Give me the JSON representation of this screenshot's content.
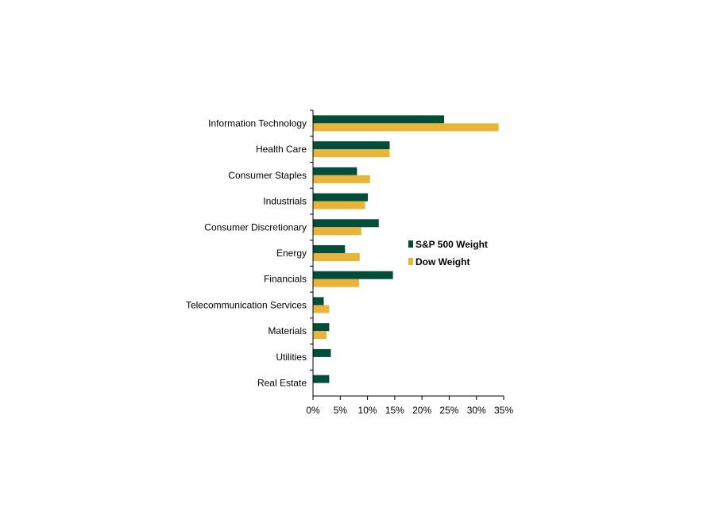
{
  "chart_data": {
    "type": "bar",
    "orientation": "horizontal",
    "categories": [
      "Information Technology",
      "Health Care",
      "Consumer Staples",
      "Industrials",
      "Consumer Discretionary",
      "Energy",
      "Financials",
      "Telecommunication Services",
      "Materials",
      "Utilities",
      "Real Estate"
    ],
    "series": [
      {
        "name": "S&P 500 Weight",
        "color": "#004d3a",
        "values": [
          24.0,
          14.0,
          8.0,
          10.0,
          12.0,
          5.8,
          14.6,
          1.9,
          2.9,
          3.2,
          2.9
        ]
      },
      {
        "name": "Dow Weight",
        "color": "#e8b53a",
        "values": [
          34.0,
          14.0,
          10.4,
          9.5,
          8.8,
          8.5,
          8.4,
          2.9,
          2.4,
          0,
          0
        ]
      }
    ],
    "xlim": [
      0,
      35
    ],
    "xticks": [
      "0%",
      "5%",
      "10%",
      "15%",
      "20%",
      "25%",
      "30%",
      "35%"
    ],
    "legend_position": "right"
  }
}
